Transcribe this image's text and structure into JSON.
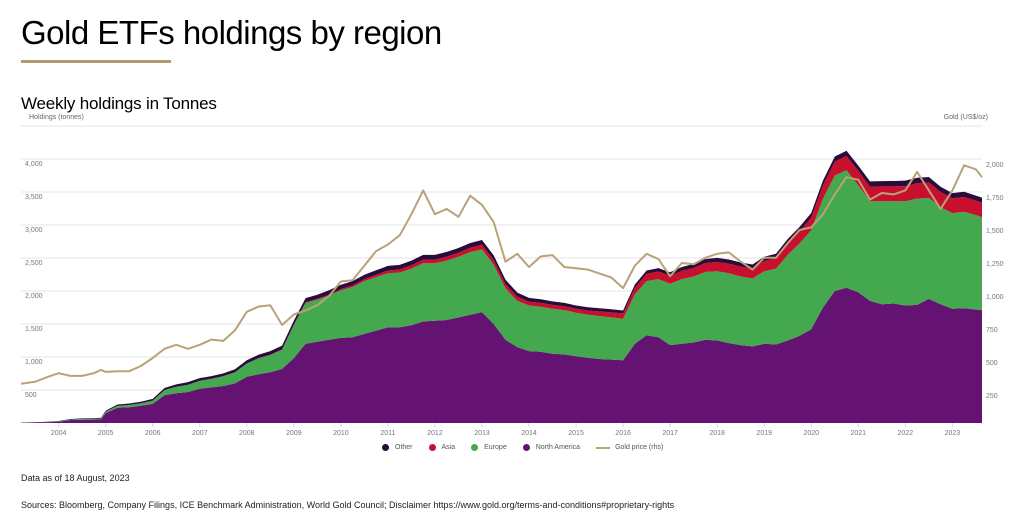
{
  "header": {
    "title": "Gold ETFs holdings by region",
    "subtitle": "Weekly holdings in Tonnes"
  },
  "colors": {
    "accent_rule": "#b09a6e",
    "other": "#2b0b3a",
    "asia": "#c8102e",
    "europe": "#44a84e",
    "north_america": "#651372",
    "gold_price": "#b8a27a",
    "grid": "#e6e6e6"
  },
  "chart_data": {
    "type": "area",
    "stacked": true,
    "title": "Weekly holdings in Tonnes",
    "ylabel": "Holdings (tonnes)",
    "y2label": "Gold (US$/oz)",
    "xlim": [
      2003.2,
      2023.63
    ],
    "ylim": [
      0,
      4000
    ],
    "y2lim": [
      0,
      2000
    ],
    "grid": true,
    "legend_position": "bottom",
    "x_ticks": [
      "2004",
      "2005",
      "2006",
      "2007",
      "2008",
      "2009",
      "2010",
      "2011",
      "2012",
      "2013",
      "2014",
      "2015",
      "2016",
      "2017",
      "2018",
      "2019",
      "2020",
      "2021",
      "2022",
      "2023"
    ],
    "y_ticks": [
      "500",
      "1,000",
      "1,500",
      "2,000",
      "2,500",
      "3,000",
      "3,500",
      "4,000"
    ],
    "y_tick_values": [
      500,
      1000,
      1500,
      2000,
      2500,
      3000,
      3500,
      4000
    ],
    "y2_ticks": [
      "250",
      "500",
      "750",
      "1,000",
      "1,250",
      "1,500",
      "1,750",
      "2,000"
    ],
    "y2_tick_values": [
      250,
      500,
      750,
      1000,
      1250,
      1500,
      1750,
      2000
    ],
    "legend": [
      "Other",
      "Asia",
      "Europe",
      "North America",
      "Gold price (rhs)"
    ],
    "x": [
      2003.2,
      2003.5,
      2003.75,
      2004.0,
      2004.25,
      2004.5,
      2004.75,
      2004.9,
      2005.0,
      2005.25,
      2005.5,
      2005.75,
      2006.0,
      2006.25,
      2006.5,
      2006.75,
      2007.0,
      2007.25,
      2007.5,
      2007.75,
      2008.0,
      2008.25,
      2008.5,
      2008.75,
      2009.0,
      2009.25,
      2009.5,
      2009.75,
      2010.0,
      2010.25,
      2010.5,
      2010.75,
      2011.0,
      2011.25,
      2011.5,
      2011.75,
      2012.0,
      2012.25,
      2012.5,
      2012.75,
      2013.0,
      2013.25,
      2013.5,
      2013.75,
      2014.0,
      2014.25,
      2014.5,
      2014.75,
      2015.0,
      2015.25,
      2015.5,
      2015.75,
      2016.0,
      2016.25,
      2016.5,
      2016.75,
      2017.0,
      2017.25,
      2017.5,
      2017.75,
      2018.0,
      2018.25,
      2018.5,
      2018.75,
      2019.0,
      2019.25,
      2019.5,
      2019.75,
      2020.0,
      2020.25,
      2020.5,
      2020.75,
      2021.0,
      2021.25,
      2021.5,
      2021.75,
      2022.0,
      2022.25,
      2022.5,
      2022.75,
      2023.0,
      2023.25,
      2023.5,
      2023.63
    ],
    "series": [
      {
        "name": "North America",
        "values": [
          5,
          8,
          12,
          20,
          45,
          50,
          52,
          55,
          150,
          230,
          240,
          260,
          290,
          420,
          450,
          470,
          520,
          540,
          560,
          600,
          700,
          740,
          770,
          820,
          980,
          1200,
          1230,
          1260,
          1290,
          1300,
          1350,
          1400,
          1450,
          1450,
          1480,
          1540,
          1550,
          1560,
          1600,
          1640,
          1680,
          1500,
          1260,
          1150,
          1090,
          1080,
          1050,
          1040,
          1010,
          990,
          970,
          960,
          950,
          1200,
          1330,
          1300,
          1180,
          1200,
          1220,
          1260,
          1250,
          1210,
          1180,
          1160,
          1200,
          1190,
          1250,
          1320,
          1420,
          1750,
          2000,
          2050,
          1980,
          1850,
          1800,
          1810,
          1780,
          1790,
          1880,
          1800,
          1730,
          1740,
          1720,
          1710
        ]
      },
      {
        "name": "Europe",
        "values": [
          0,
          0,
          2,
          5,
          8,
          10,
          12,
          15,
          20,
          30,
          35,
          40,
          50,
          80,
          100,
          110,
          120,
          130,
          150,
          170,
          200,
          240,
          260,
          290,
          500,
          620,
          640,
          670,
          720,
          760,
          800,
          810,
          820,
          830,
          860,
          880,
          870,
          900,
          920,
          950,
          950,
          900,
          780,
          700,
          690,
          680,
          680,
          670,
          660,
          650,
          650,
          640,
          630,
          750,
          820,
          880,
          930,
          980,
          1000,
          1030,
          1050,
          1060,
          1040,
          1030,
          1100,
          1150,
          1300,
          1400,
          1500,
          1650,
          1750,
          1780,
          1620,
          1510,
          1560,
          1550,
          1580,
          1610,
          1530,
          1470,
          1450,
          1460,
          1430,
          1410
        ]
      },
      {
        "name": "Asia",
        "values": [
          0,
          0,
          0,
          0,
          0,
          0,
          0,
          0,
          0,
          0,
          0,
          0,
          0,
          0,
          0,
          0,
          0,
          0,
          0,
          0,
          2,
          3,
          4,
          5,
          8,
          10,
          12,
          15,
          20,
          25,
          30,
          35,
          40,
          45,
          50,
          55,
          55,
          60,
          60,
          65,
          70,
          70,
          65,
          65,
          60,
          60,
          60,
          60,
          60,
          65,
          70,
          75,
          80,
          100,
          110,
          115,
          120,
          125,
          130,
          135,
          140,
          145,
          150,
          150,
          155,
          160,
          170,
          180,
          190,
          200,
          210,
          215,
          220,
          220,
          225,
          225,
          230,
          235,
          235,
          230,
          225,
          225,
          220,
          220
        ]
      },
      {
        "name": "Other",
        "values": [
          2,
          3,
          5,
          5,
          8,
          10,
          10,
          10,
          15,
          20,
          20,
          22,
          25,
          30,
          35,
          40,
          40,
          40,
          42,
          45,
          50,
          52,
          55,
          58,
          60,
          62,
          62,
          65,
          65,
          65,
          65,
          68,
          70,
          70,
          70,
          72,
          72,
          72,
          72,
          72,
          72,
          70,
          65,
          60,
          55,
          55,
          52,
          50,
          50,
          50,
          48,
          48,
          45,
          48,
          50,
          52,
          55,
          58,
          60,
          60,
          62,
          62,
          62,
          62,
          65,
          65,
          68,
          70,
          72,
          75,
          78,
          80,
          80,
          80,
          80,
          82,
          82,
          82,
          82,
          80,
          78,
          78,
          76,
          75
        ]
      },
      {
        "name": "Gold price (rhs)",
        "axis": "right",
        "values": [
          335,
          350,
          385,
          415,
          395,
          395,
          415,
          440,
          425,
          430,
          430,
          470,
          530,
          600,
          630,
          600,
          630,
          670,
          660,
          740,
          880,
          920,
          930,
          780,
          860,
          890,
          930,
          1000,
          1110,
          1120,
          1230,
          1340,
          1390,
          1460,
          1620,
          1800,
          1620,
          1660,
          1600,
          1760,
          1690,
          1560,
          1260,
          1320,
          1220,
          1300,
          1310,
          1220,
          1210,
          1200,
          1170,
          1140,
          1060,
          1230,
          1320,
          1280,
          1150,
          1250,
          1240,
          1290,
          1320,
          1330,
          1260,
          1200,
          1290,
          1290,
          1400,
          1500,
          1520,
          1620,
          1770,
          1900,
          1880,
          1730,
          1780,
          1770,
          1800,
          1940,
          1800,
          1660,
          1800,
          1990,
          1960,
          1900
        ]
      }
    ]
  },
  "footer": {
    "note": "Data as of 18 August, 2023",
    "sources": "Sources: Bloomberg, Company Filings, ICE Benchmark Administration, World Gold Council; Disclaimer https://www.gold.org/terms-and-conditions#proprietary-rights"
  }
}
